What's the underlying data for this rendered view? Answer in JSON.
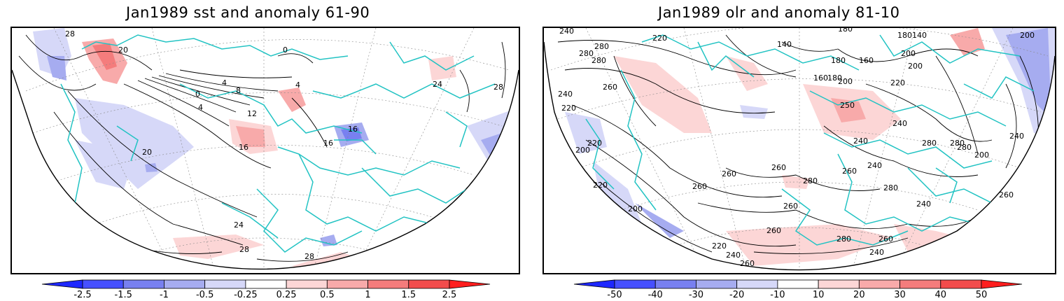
{
  "left_panel": {
    "title": "Jan1989 sst and anomaly 61-90",
    "contour_labels": [
      "28",
      "20",
      "0",
      "4",
      "8",
      "12",
      "16",
      "4",
      "20",
      "16",
      "24",
      "28",
      "28",
      "24",
      "28",
      "0",
      "4",
      "16"
    ],
    "colorbar": {
      "tick_labels": [
        "-2.5",
        "-1.5",
        "-1",
        "-0.5",
        "-0.25",
        "0.25",
        "0.5",
        "1",
        "1.5",
        "2.5"
      ],
      "colors": [
        "#1e28ff",
        "#4650ff",
        "#7880f0",
        "#a6acf0",
        "#d6d8f8",
        "#ffffff",
        "#fcd6d6",
        "#f8aaaa",
        "#f47c7c",
        "#f24c4c",
        "#ff1e1e"
      ]
    }
  },
  "right_panel": {
    "title": "Jan1989 olr and anomaly 81-10",
    "contour_labels": [
      "240",
      "220",
      "280",
      "280",
      "280",
      "260",
      "240",
      "220",
      "200",
      "220",
      "140",
      "180",
      "180",
      "160",
      "180",
      "200",
      "220",
      "200",
      "180140",
      "160",
      "200",
      "250",
      "240",
      "240",
      "280",
      "280",
      "240",
      "260",
      "260",
      "260",
      "280",
      "260",
      "280",
      "220",
      "200",
      "260",
      "260",
      "280",
      "260",
      "220",
      "240",
      "260",
      "240",
      "240",
      "280",
      "200",
      "260",
      "200",
      "240"
    ],
    "colorbar": {
      "tick_labels": [
        "-50",
        "-40",
        "-30",
        "-20",
        "-10",
        "10",
        "20",
        "30",
        "40",
        "50"
      ],
      "colors": [
        "#1e28ff",
        "#4650ff",
        "#7880f0",
        "#a6acf0",
        "#d6d8f8",
        "#ffffff",
        "#fcd6d6",
        "#f8aaaa",
        "#f47c7c",
        "#f24c4c",
        "#ff1e1e"
      ]
    }
  },
  "colors": {
    "coastline": "#22c3c3",
    "contour": "#000000",
    "frame": "#000000"
  }
}
